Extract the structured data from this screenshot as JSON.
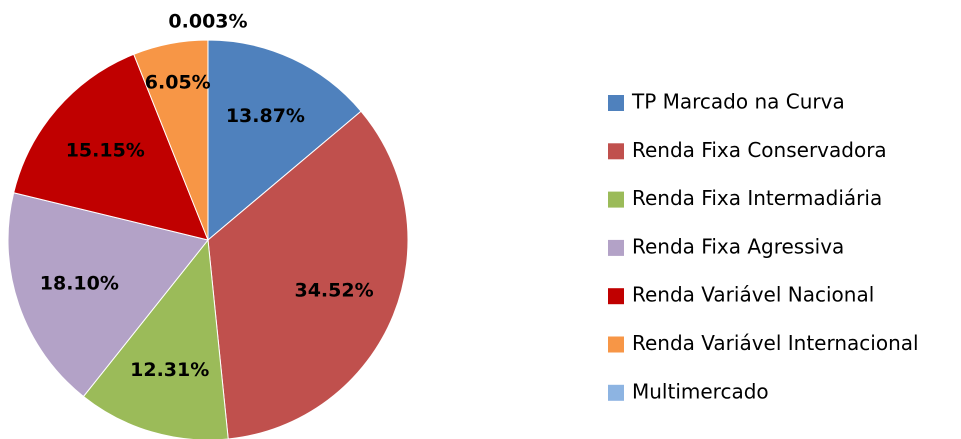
{
  "chart_data": {
    "type": "pie",
    "categories": [
      "TP Marcado na Curva",
      "Renda Fixa Conservadora",
      "Renda Fixa Intermadiária",
      "Renda Fixa Agressiva",
      "Renda Variável Nacional",
      "Renda Variável Internacional",
      "Multimercado"
    ],
    "values": [
      13.87,
      34.52,
      12.31,
      18.1,
      15.15,
      6.05,
      0.003
    ],
    "value_labels": [
      "13.87%",
      "34.52%",
      "12.31%",
      "18.10%",
      "15.15%",
      "6.05%",
      "0.003%"
    ],
    "colors": [
      "#4f81bd",
      "#c0504d",
      "#9bbb59",
      "#b3a2c7",
      "#c00000",
      "#f79646",
      "#8db4e2"
    ],
    "legend": "right"
  }
}
